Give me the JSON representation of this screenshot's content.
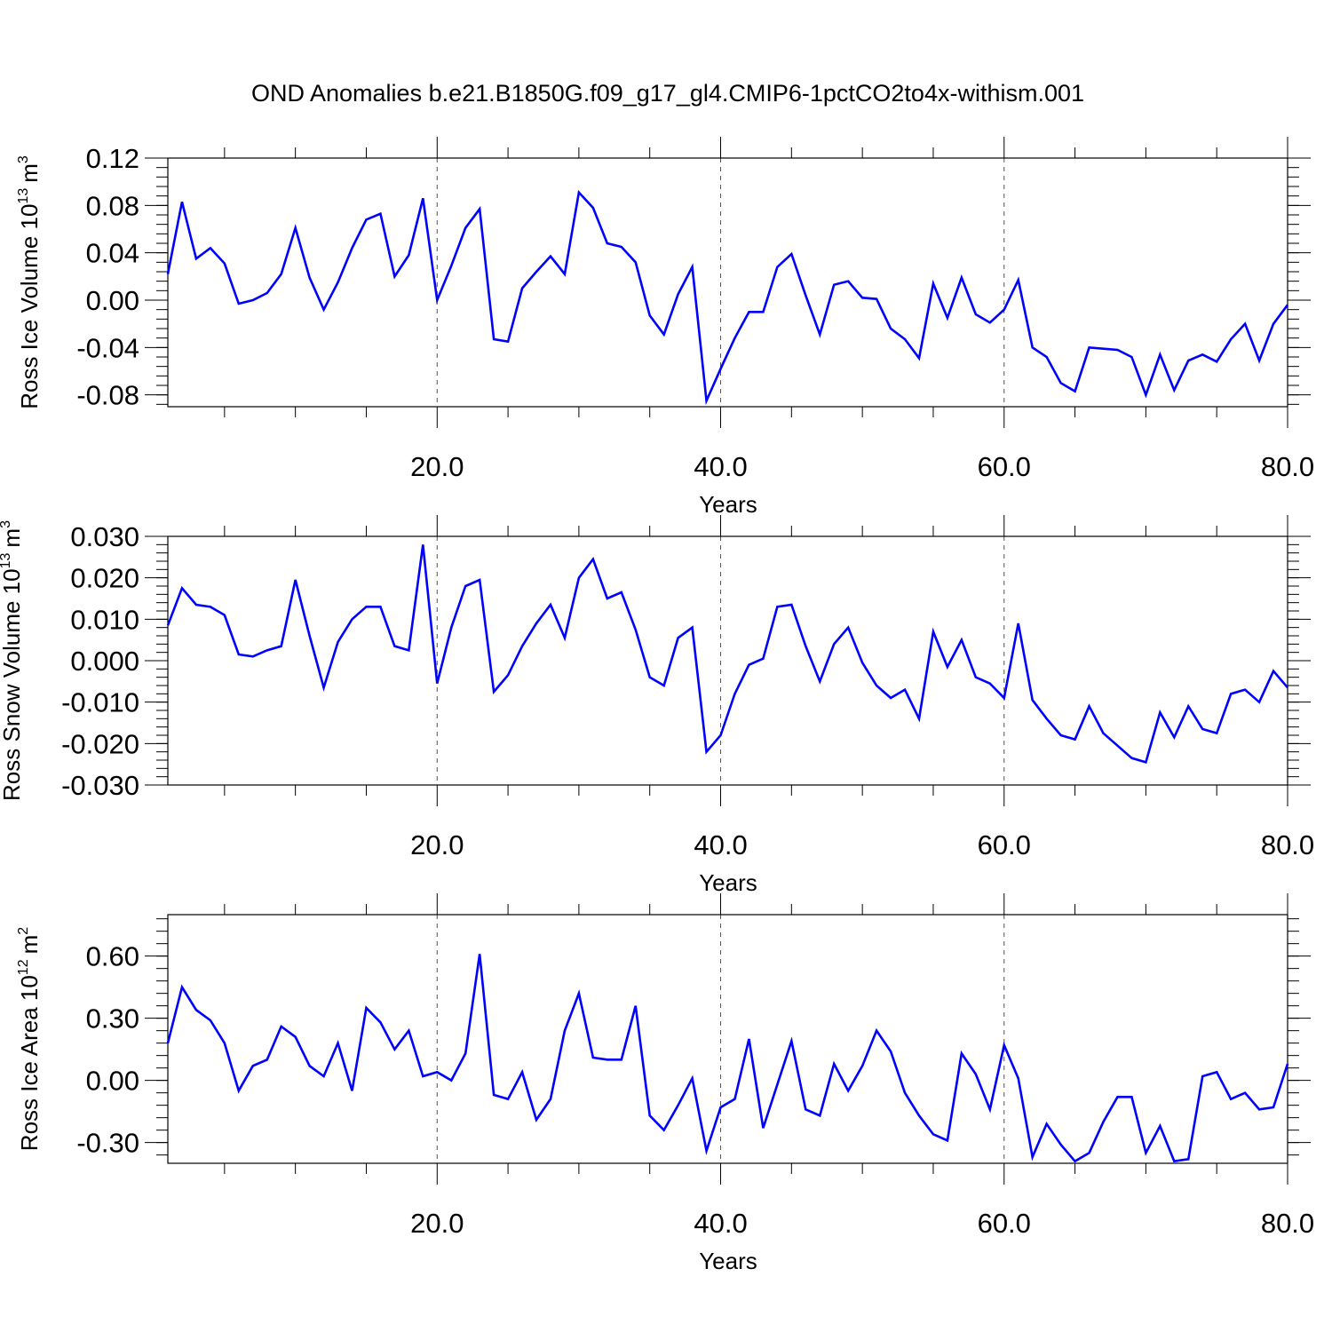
{
  "title": "OND Anomalies b.e21.B1850G.f09_g17_gl4.CMIP6-1pctCO2to4x-withism.001",
  "line_color": "#0000ff",
  "chart_data": [
    {
      "type": "line",
      "ylabel": "Ross Ice Volume 10",
      "ylabel_exp": "13",
      "ylabel_unit": "m",
      "ylabel_unit_exp": "3",
      "xlabel": "Years",
      "xlim": [
        1,
        80
      ],
      "ylim": [
        -0.09,
        0.12
      ],
      "yticks": [
        -0.08,
        -0.04,
        0.0,
        0.04,
        0.08,
        0.12
      ],
      "ytick_labels": [
        "-0.08",
        "-0.04",
        "0.00",
        "0.04",
        "0.08",
        "0.12"
      ],
      "xticks": [
        20,
        40,
        60,
        80
      ],
      "xtick_labels": [
        "20.0",
        "40.0",
        "60.0",
        "80.0"
      ],
      "vertical_dashed_lines_at": [
        20,
        40,
        60
      ],
      "series": [
        {
          "x": [
            1,
            2,
            3,
            4,
            5,
            6,
            7,
            8,
            9,
            10,
            11,
            12,
            13,
            14,
            15,
            16,
            17,
            18,
            19,
            20,
            21,
            22,
            23,
            24,
            25,
            26,
            27,
            28,
            29,
            30,
            31,
            32,
            33,
            34,
            35,
            36,
            37,
            38,
            39,
            40,
            41,
            42,
            43,
            44,
            45,
            46,
            47,
            48,
            49,
            50,
            51,
            52,
            53,
            54,
            55,
            56,
            57,
            58,
            59,
            60,
            61,
            62,
            63,
            64,
            65,
            66,
            67,
            68,
            69,
            70,
            71,
            72,
            73,
            74,
            75,
            76,
            77,
            78,
            79,
            80
          ],
          "values": [
            0.022,
            0.083,
            0.035,
            0.044,
            0.031,
            -0.003,
            0.0,
            0.006,
            0.022,
            0.061,
            0.019,
            -0.008,
            0.015,
            0.044,
            0.068,
            0.073,
            0.02,
            0.038,
            0.086,
            0.0,
            0.029,
            0.061,
            0.077,
            -0.033,
            -0.035,
            0.01,
            0.024,
            0.037,
            0.022,
            0.091,
            0.078,
            0.048,
            0.045,
            0.032,
            -0.013,
            -0.029,
            0.005,
            0.028,
            -0.085,
            -0.058,
            -0.032,
            -0.01,
            -0.01,
            0.028,
            0.039,
            0.004,
            -0.029,
            0.013,
            0.016,
            0.002,
            0.001,
            -0.024,
            -0.033,
            -0.049,
            0.014,
            -0.015,
            0.019,
            -0.012,
            -0.019,
            -0.008,
            0.017,
            -0.04,
            -0.048,
            -0.07,
            -0.077,
            -0.04,
            -0.041,
            -0.042,
            -0.048,
            -0.08,
            -0.046,
            -0.076,
            -0.051,
            -0.046,
            -0.052,
            -0.033,
            -0.02,
            -0.051,
            -0.02,
            -0.004
          ]
        }
      ]
    },
    {
      "type": "line",
      "ylabel": "Ross Snow Volume 10",
      "ylabel_exp": "13",
      "ylabel_unit": "m",
      "ylabel_unit_exp": "3",
      "xlabel": "Years",
      "xlim": [
        1,
        80
      ],
      "ylim": [
        -0.03,
        0.03
      ],
      "yticks": [
        -0.03,
        -0.02,
        -0.01,
        0.0,
        0.01,
        0.02,
        0.03
      ],
      "ytick_labels": [
        "-0.030",
        "-0.020",
        "-0.010",
        "0.000",
        "0.010",
        "0.020",
        "0.030"
      ],
      "xticks": [
        20,
        40,
        60,
        80
      ],
      "xtick_labels": [
        "20.0",
        "40.0",
        "60.0",
        "80.0"
      ],
      "vertical_dashed_lines_at": [
        20,
        40,
        60
      ],
      "series": [
        {
          "x": [
            1,
            2,
            3,
            4,
            5,
            6,
            7,
            8,
            9,
            10,
            11,
            12,
            13,
            14,
            15,
            16,
            17,
            18,
            19,
            20,
            21,
            22,
            23,
            24,
            25,
            26,
            27,
            28,
            29,
            30,
            31,
            32,
            33,
            34,
            35,
            36,
            37,
            38,
            39,
            40,
            41,
            42,
            43,
            44,
            45,
            46,
            47,
            48,
            49,
            50,
            51,
            52,
            53,
            54,
            55,
            56,
            57,
            58,
            59,
            60,
            61,
            62,
            63,
            64,
            65,
            66,
            67,
            68,
            69,
            70,
            71,
            72,
            73,
            74,
            75,
            76,
            77,
            78,
            79,
            80
          ],
          "values": [
            0.0085,
            0.0175,
            0.0135,
            0.013,
            0.011,
            0.0015,
            0.001,
            0.0025,
            0.0035,
            0.0195,
            0.006,
            -0.0065,
            0.0045,
            0.01,
            0.013,
            0.013,
            0.0035,
            0.0025,
            0.028,
            -0.0055,
            0.008,
            0.018,
            0.0195,
            -0.0075,
            -0.0035,
            0.0035,
            0.009,
            0.0135,
            0.0055,
            0.02,
            0.0245,
            0.015,
            0.0165,
            0.0075,
            -0.004,
            -0.006,
            0.0055,
            0.008,
            -0.022,
            -0.018,
            -0.008,
            -0.001,
            0.0005,
            0.013,
            0.0135,
            0.0035,
            -0.005,
            0.004,
            0.008,
            -0.0005,
            -0.006,
            -0.009,
            -0.007,
            -0.014,
            0.007,
            -0.0015,
            0.005,
            -0.004,
            -0.0055,
            -0.009,
            0.009,
            -0.0095,
            -0.014,
            -0.018,
            -0.019,
            -0.011,
            -0.0175,
            -0.0205,
            -0.0235,
            -0.0245,
            -0.0125,
            -0.0185,
            -0.011,
            -0.0165,
            -0.0175,
            -0.008,
            -0.007,
            -0.01,
            -0.0025,
            -0.0065
          ]
        }
      ]
    },
    {
      "type": "line",
      "ylabel": "Ross Ice Area 10",
      "ylabel_exp": "12",
      "ylabel_unit": "m",
      "ylabel_unit_exp": "2",
      "xlabel": "Years",
      "xlim": [
        1,
        80
      ],
      "ylim": [
        -0.4,
        0.8
      ],
      "yticks": [
        -0.3,
        0.0,
        0.3,
        0.6
      ],
      "ytick_labels": [
        "-0.30",
        "0.00",
        "0.30",
        "0.60"
      ],
      "xticks": [
        20,
        40,
        60,
        80
      ],
      "xtick_labels": [
        "20.0",
        "40.0",
        "60.0",
        "80.0"
      ],
      "vertical_dashed_lines_at": [
        20,
        40,
        60
      ],
      "series": [
        {
          "x": [
            1,
            2,
            3,
            4,
            5,
            6,
            7,
            8,
            9,
            10,
            11,
            12,
            13,
            14,
            15,
            16,
            17,
            18,
            19,
            20,
            21,
            22,
            23,
            24,
            25,
            26,
            27,
            28,
            29,
            30,
            31,
            32,
            33,
            34,
            35,
            36,
            37,
            38,
            39,
            40,
            41,
            42,
            43,
            44,
            45,
            46,
            47,
            48,
            49,
            50,
            51,
            52,
            53,
            54,
            55,
            56,
            57,
            58,
            59,
            60,
            61,
            62,
            63,
            64,
            65,
            66,
            67,
            68,
            69,
            70,
            71,
            72,
            73,
            74,
            75,
            76,
            77,
            78,
            79,
            80
          ],
          "values": [
            0.18,
            0.45,
            0.34,
            0.29,
            0.18,
            -0.05,
            0.07,
            0.1,
            0.26,
            0.21,
            0.07,
            0.02,
            0.18,
            -0.05,
            0.35,
            0.28,
            0.15,
            0.24,
            0.02,
            0.04,
            0.0,
            0.13,
            0.61,
            -0.07,
            -0.09,
            0.04,
            -0.19,
            -0.09,
            0.24,
            0.42,
            0.11,
            0.1,
            0.1,
            0.36,
            -0.17,
            -0.24,
            -0.12,
            0.01,
            -0.34,
            -0.13,
            -0.09,
            0.2,
            -0.23,
            -0.02,
            0.19,
            -0.14,
            -0.17,
            0.08,
            -0.05,
            0.07,
            0.24,
            0.14,
            -0.06,
            -0.17,
            -0.26,
            -0.29,
            0.13,
            0.03,
            -0.14,
            0.17,
            0.01,
            -0.37,
            -0.21,
            -0.31,
            -0.39,
            -0.35,
            -0.2,
            -0.08,
            -0.08,
            -0.35,
            -0.22,
            -0.39,
            -0.38,
            0.02,
            0.04,
            -0.09,
            -0.06,
            -0.14,
            -0.13,
            0.08
          ]
        }
      ]
    }
  ]
}
